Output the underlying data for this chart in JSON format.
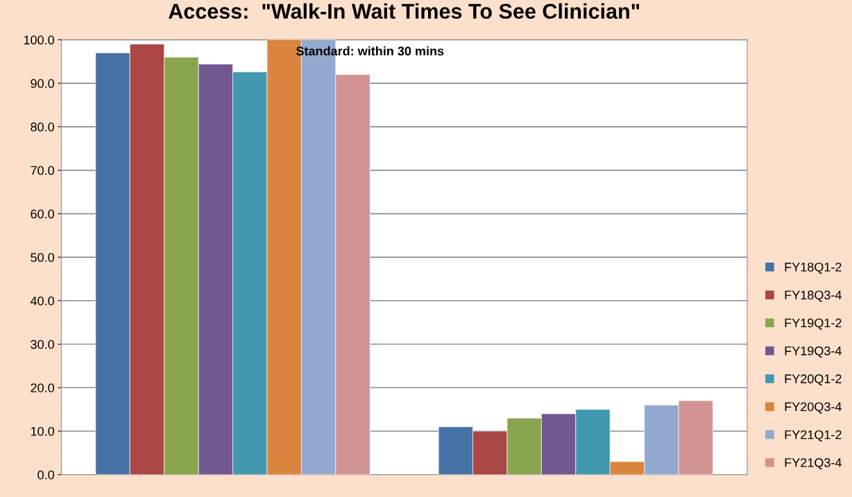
{
  "chart_data": {
    "type": "bar",
    "title": "Access:  \"Walk-In Wait Times To See Clinician\"",
    "annotations": [
      "Standard: within 30 mins"
    ],
    "categories": [
      null,
      null
    ],
    "series": [
      {
        "name": "FY18Q1-2",
        "color": "#4572a7",
        "values": [
          97.0,
          11.0
        ]
      },
      {
        "name": "FY18Q3-4",
        "color": "#aa4643",
        "values": [
          99.0,
          10.0
        ]
      },
      {
        "name": "FY19Q1-2",
        "color": "#89a54e",
        "values": [
          96.0,
          13.0
        ]
      },
      {
        "name": "FY19Q3-4",
        "color": "#71588f",
        "values": [
          94.4,
          14.0
        ]
      },
      {
        "name": "FY20Q1-2",
        "color": "#4198af",
        "values": [
          92.6,
          15.0
        ]
      },
      {
        "name": "FY20Q3-4",
        "color": "#db843d",
        "values": [
          100.0,
          3.0
        ]
      },
      {
        "name": "FY21Q1-2",
        "color": "#93a9cf",
        "values": [
          100.0,
          16.0
        ]
      },
      {
        "name": "FY21Q3-4",
        "color": "#d19392",
        "values": [
          92.0,
          17.0
        ]
      }
    ],
    "ylim": [
      0,
      100
    ],
    "yticks": [
      {
        "value": 0,
        "label": "0.0"
      },
      {
        "value": 10,
        "label": "10.0"
      },
      {
        "value": 20,
        "label": "20.0"
      },
      {
        "value": 30,
        "label": "30.0"
      },
      {
        "value": 40,
        "label": "40.0"
      },
      {
        "value": 50,
        "label": "50.0"
      },
      {
        "value": 60,
        "label": "60.0"
      },
      {
        "value": 70,
        "label": "70.0"
      },
      {
        "value": 80,
        "label": "80.0"
      },
      {
        "value": 90,
        "label": "90.0"
      },
      {
        "value": 100,
        "label": "100.0"
      }
    ],
    "grid": "y",
    "legend": "right"
  }
}
